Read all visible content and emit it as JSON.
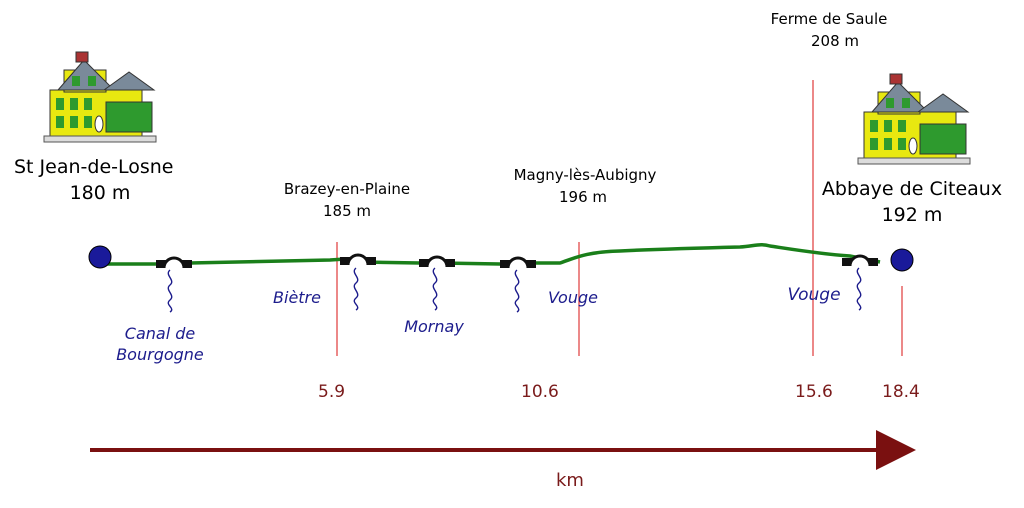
{
  "start": {
    "name": "St Jean-de-Losne",
    "altitude": "180 m"
  },
  "end": {
    "name": "Abbaye de Citeaux",
    "altitude": "192 m"
  },
  "waypoints": [
    {
      "name": "Brazey-en-Plaine",
      "altitude": "185 m",
      "km": "5.9"
    },
    {
      "name": "Magny-lès-Aubigny",
      "altitude": "196 m",
      "km": "10.6"
    },
    {
      "name": "Ferme de Saule",
      "altitude": "208 m",
      "km": "15.6"
    },
    {
      "km": "18.4"
    }
  ],
  "waterways": [
    {
      "line1": "Canal de",
      "line2": "Bourgogne"
    },
    {
      "name": "Biètre"
    },
    {
      "name": "Mornay"
    },
    {
      "name": "Vouge"
    },
    {
      "name": "Vouge"
    }
  ],
  "axis_label": "km",
  "colors": {
    "route": "#1a7f1a",
    "marker": "#e03a3a",
    "axis": "#7a1010",
    "endpoint": "#1a1a9a",
    "river_text": "#1c1c8c",
    "km_text": "#7a1b1b"
  },
  "icons": [
    "house-icon",
    "bridge-icon",
    "river-icon",
    "endpoint-dot-icon"
  ]
}
